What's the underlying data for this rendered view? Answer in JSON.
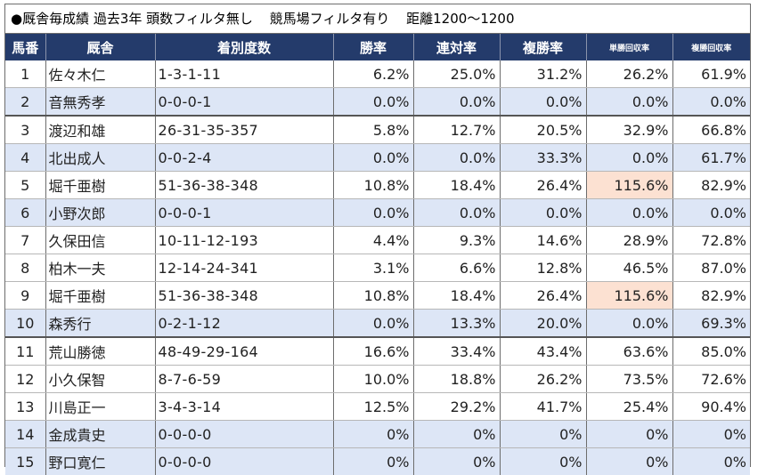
{
  "title": {
    "part1": "●厩舎毎成績 過去3年 頭数フィルタ無し",
    "part2": "競馬場フィルタ有り",
    "part3": "距離1200〜1200"
  },
  "headers": {
    "num": "馬番",
    "stable": "厩舎",
    "record": "着別度数",
    "win": "勝率",
    "quinella": "連対率",
    "place": "複勝率",
    "win_return": "単勝回収率",
    "place_return": "複勝回収率"
  },
  "rows": [
    {
      "num": "1",
      "stable": "佐々木仁",
      "record": "1-3-1-11",
      "win": "6.2%",
      "quinella": "25.0%",
      "place": "31.2%",
      "win_return": "26.2%",
      "place_return": "61.9%"
    },
    {
      "num": "2",
      "stable": "音無秀孝",
      "record": "0-0-0-1",
      "win": "0.0%",
      "quinella": "0.0%",
      "place": "0.0%",
      "win_return": "0.0%",
      "place_return": "0.0%"
    },
    {
      "num": "3",
      "stable": "渡辺和雄",
      "record": "26-31-35-357",
      "win": "5.8%",
      "quinella": "12.7%",
      "place": "20.5%",
      "win_return": "32.9%",
      "place_return": "66.8%"
    },
    {
      "num": "4",
      "stable": "北出成人",
      "record": "0-0-2-4",
      "win": "0.0%",
      "quinella": "0.0%",
      "place": "33.3%",
      "win_return": "0.0%",
      "place_return": "61.7%"
    },
    {
      "num": "5",
      "stable": "堀千亜樹",
      "record": "51-36-38-348",
      "win": "10.8%",
      "quinella": "18.4%",
      "place": "26.4%",
      "win_return": "115.6%",
      "place_return": "82.9%"
    },
    {
      "num": "6",
      "stable": "小野次郎",
      "record": "0-0-0-1",
      "win": "0.0%",
      "quinella": "0.0%",
      "place": "0.0%",
      "win_return": "0.0%",
      "place_return": "0.0%"
    },
    {
      "num": "7",
      "stable": "久保田信",
      "record": "10-11-12-193",
      "win": "4.4%",
      "quinella": "9.3%",
      "place": "14.6%",
      "win_return": "28.9%",
      "place_return": "72.8%"
    },
    {
      "num": "8",
      "stable": "柏木一夫",
      "record": "12-14-24-341",
      "win": "3.1%",
      "quinella": "6.6%",
      "place": "12.8%",
      "win_return": "46.5%",
      "place_return": "87.0%"
    },
    {
      "num": "9",
      "stable": "堀千亜樹",
      "record": "51-36-38-348",
      "win": "10.8%",
      "quinella": "18.4%",
      "place": "26.4%",
      "win_return": "115.6%",
      "place_return": "82.9%"
    },
    {
      "num": "10",
      "stable": "森秀行",
      "record": "0-2-1-12",
      "win": "0.0%",
      "quinella": "13.3%",
      "place": "20.0%",
      "win_return": "0.0%",
      "place_return": "69.3%"
    },
    {
      "num": "11",
      "stable": "荒山勝徳",
      "record": "48-49-29-164",
      "win": "16.6%",
      "quinella": "33.4%",
      "place": "43.4%",
      "win_return": "63.6%",
      "place_return": "85.0%"
    },
    {
      "num": "12",
      "stable": "小久保智",
      "record": "8-7-6-59",
      "win": "10.0%",
      "quinella": "18.8%",
      "place": "26.2%",
      "win_return": "73.5%",
      "place_return": "72.6%"
    },
    {
      "num": "13",
      "stable": "川島正一",
      "record": "3-4-3-14",
      "win": "12.5%",
      "quinella": "29.2%",
      "place": "41.7%",
      "win_return": "25.4%",
      "place_return": "90.4%"
    },
    {
      "num": "14",
      "stable": "金成貴史",
      "record": "0-0-0-0",
      "win": "0%",
      "quinella": "0%",
      "place": "0%",
      "win_return": "0%",
      "place_return": "0%"
    },
    {
      "num": "15",
      "stable": "野口寛仁",
      "record": "0-0-0-0",
      "win": "0%",
      "quinella": "0%",
      "place": "0%",
      "win_return": "0%",
      "place_return": "0%"
    }
  ],
  "colors": {
    "header_bg": "#243b6b",
    "alt_row_bg": "#dde6f6",
    "highlight_bg": "#fce1d2"
  }
}
